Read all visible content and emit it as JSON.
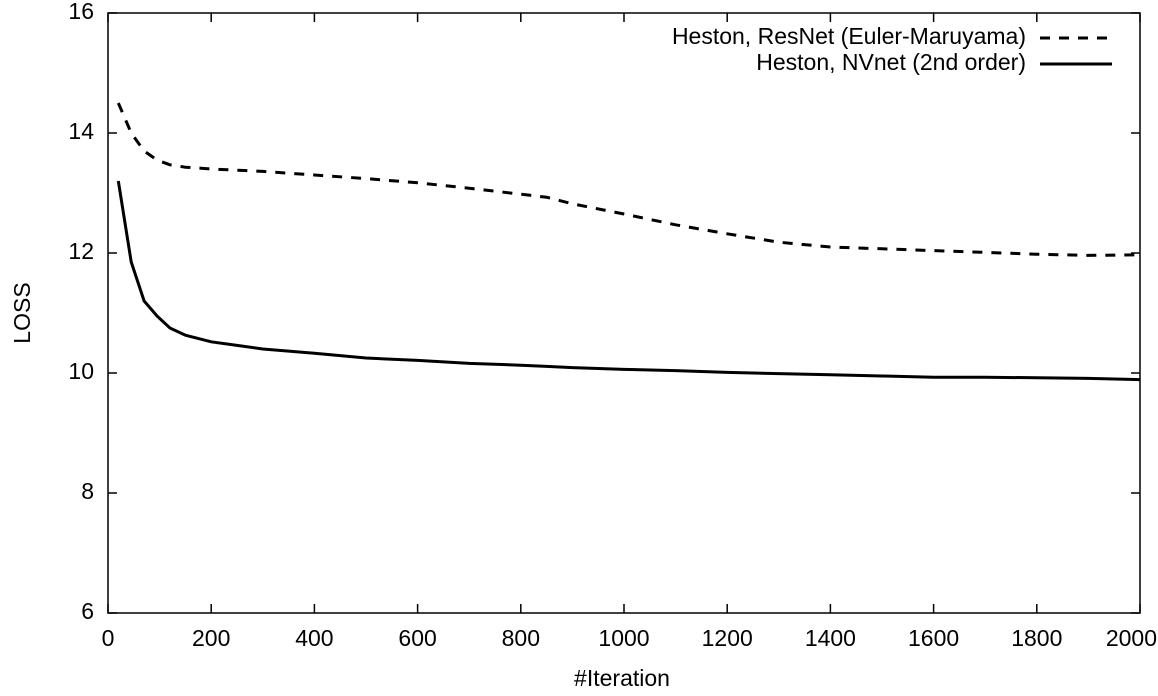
{
  "chart_data": {
    "type": "line",
    "xlabel": "#Iteration",
    "ylabel": "LOSS",
    "x": [
      20,
      45,
      70,
      95,
      120,
      150,
      200,
      250,
      300,
      400,
      500,
      600,
      700,
      800,
      850,
      900,
      1000,
      1100,
      1200,
      1300,
      1400,
      1500,
      1600,
      1700,
      1800,
      1900,
      2000
    ],
    "series": [
      {
        "name": "Heston, ResNet (Euler-Maruyama)",
        "color": "#000000",
        "style": "dashed",
        "values": [
          14.5,
          14.0,
          13.7,
          13.55,
          13.47,
          13.43,
          13.4,
          13.38,
          13.36,
          13.3,
          13.24,
          13.17,
          13.08,
          12.98,
          12.93,
          12.82,
          12.65,
          12.47,
          12.32,
          12.18,
          12.1,
          12.07,
          12.04,
          12.01,
          11.98,
          11.96,
          11.97
        ]
      },
      {
        "name": "Heston, NVnet (2nd order)",
        "color": "#000000",
        "style": "solid",
        "values": [
          13.2,
          11.85,
          11.2,
          10.95,
          10.75,
          10.63,
          10.52,
          10.46,
          10.4,
          10.33,
          10.25,
          10.21,
          10.16,
          10.13,
          10.11,
          10.09,
          10.06,
          10.04,
          10.01,
          9.99,
          9.97,
          9.95,
          9.93,
          9.93,
          9.92,
          9.91,
          9.89
        ]
      }
    ],
    "xlim": [
      0,
      2000
    ],
    "xticks": [
      0,
      200,
      400,
      600,
      800,
      1000,
      1200,
      1400,
      1600,
      1800,
      2000
    ],
    "ylim": [
      6,
      16
    ],
    "yticks": [
      6,
      8,
      10,
      12,
      14,
      16
    ],
    "grid": false,
    "legend": "top-right"
  }
}
